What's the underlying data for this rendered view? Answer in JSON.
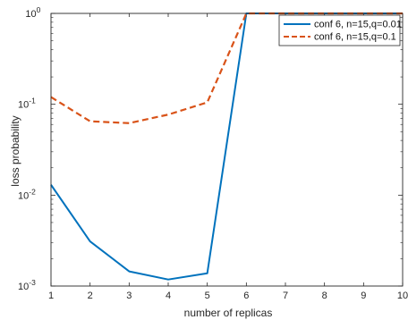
{
  "chart_data": {
    "type": "line",
    "title": "",
    "xlabel": "number of replicas",
    "ylabel": "loss probability",
    "yscale": "log",
    "grid": false,
    "legend_position": "top-right",
    "x": [
      1,
      2,
      3,
      4,
      5,
      6,
      7,
      8,
      9,
      10
    ],
    "xlim": [
      1,
      10
    ],
    "ylim": [
      0.001,
      1
    ],
    "x_ticks": [
      "1",
      "2",
      "3",
      "4",
      "5",
      "6",
      "7",
      "8",
      "9",
      "10"
    ],
    "y_ticks": [
      {
        "base": "10",
        "exp": "0",
        "value": 1
      },
      {
        "base": "10",
        "exp": "-1",
        "value": 0.1
      },
      {
        "base": "10",
        "exp": "-2",
        "value": 0.01
      },
      {
        "base": "10",
        "exp": "-3",
        "value": 0.001
      }
    ],
    "series": [
      {
        "name": "conf 6, n=15,q=0.01",
        "values": [
          0.013,
          0.0031,
          0.00145,
          0.00118,
          0.00138,
          1,
          1,
          1,
          1,
          1
        ],
        "color": "#0072BD",
        "line_style": "solid"
      },
      {
        "name": "conf 6, n=15,q=0.1",
        "values": [
          0.12,
          0.065,
          0.062,
          0.077,
          0.105,
          1,
          1,
          1,
          1,
          1
        ],
        "color": "#D95319",
        "line_style": "dashed"
      }
    ]
  }
}
